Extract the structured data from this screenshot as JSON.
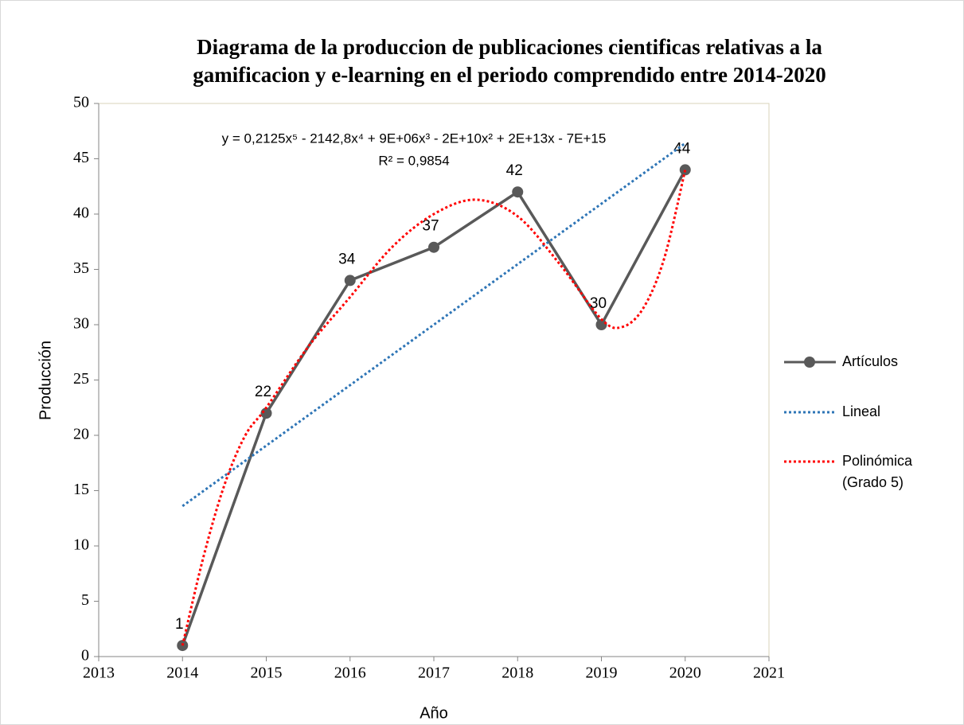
{
  "chart_data": {
    "type": "line",
    "title": [
      "Diagrama de la produccion de publicaciones cientificas relativas a la",
      "gamificacion y e-learning en el periodo comprendido entre 2014-2020"
    ],
    "xlabel": "Año",
    "ylabel": "Producción",
    "annotations": [
      "y = 0,2125x⁵ - 2142,8x⁴ + 9E+06x³ - 2E+10x² + 2E+13x - 7E+15",
      "R² = 0,9854"
    ],
    "xlim": [
      2013,
      2021
    ],
    "xticks": [
      2013,
      2014,
      2015,
      2016,
      2017,
      2018,
      2019,
      2020,
      2021
    ],
    "ylim": [
      0,
      50
    ],
    "yticks": [
      0,
      5,
      10,
      15,
      20,
      25,
      30,
      35,
      40,
      45,
      50
    ],
    "legend": "right",
    "series": [
      {
        "name": "Artículos",
        "color": "#595959",
        "markers": true,
        "labels": true,
        "dash": "solid",
        "x": [
          2014,
          2015,
          2016,
          2017,
          2018,
          2019,
          2020
        ],
        "values": [
          1,
          22,
          34,
          37,
          42,
          30,
          44
        ]
      },
      {
        "name": "Lineal",
        "color": "#2e75b6",
        "dash": "dotted",
        "x": [
          2014,
          2020
        ],
        "values": [
          13.6,
          46.4
        ]
      },
      {
        "name": "Polinómica (Grado 5)",
        "color": "#ff0000",
        "dash": "dotted",
        "smooth": true,
        "x": [
          2014,
          2014.25,
          2014.5,
          2014.75,
          2015,
          2015.5,
          2016,
          2016.5,
          2017,
          2017.5,
          2018,
          2018.5,
          2019,
          2019.25,
          2019.5,
          2019.75,
          2020
        ],
        "values": [
          1,
          9,
          15.5,
          20,
          22.5,
          28,
          32.5,
          37,
          40,
          41.3,
          39.8,
          35.5,
          30.5,
          29.8,
          31.5,
          36,
          44
        ]
      }
    ]
  }
}
